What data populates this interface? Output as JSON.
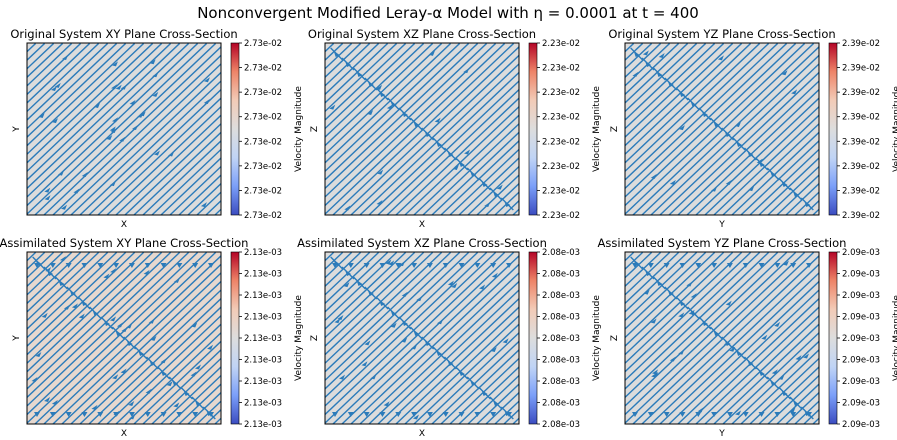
{
  "figure": {
    "suptitle": "Nonconvergent Modified Leray-α Model with η = 0.0001 at t = 400"
  },
  "chart_data": [
    {
      "type": "streamplot",
      "title": "Original System XY Plane Cross-Section",
      "xlabel": "X",
      "ylabel": "Y",
      "colorbar_label": "Velocity Magnitude",
      "colorbar_ticks": [
        "2.73e-02",
        "2.73e-02",
        "2.73e-02",
        "2.73e-02",
        "2.73e-02",
        "2.73e-02",
        "2.73e-02",
        "2.73e-02"
      ],
      "background": "#dcdcdc",
      "line_color": "#2b7bba",
      "diag_pattern": "none",
      "arrow_density": "high"
    },
    {
      "type": "streamplot",
      "title": "Original System XZ Plane Cross-Section",
      "xlabel": "X",
      "ylabel": "Z",
      "colorbar_label": "Velocity Magnitude",
      "colorbar_ticks": [
        "2.23e-02",
        "2.23e-02",
        "2.23e-02",
        "2.23e-02",
        "2.23e-02",
        "2.23e-02",
        "2.23e-02",
        "2.23e-02"
      ],
      "background": "#dcdcdc",
      "line_color": "#2b7bba",
      "diag_pattern": "diagonal",
      "arrow_density": "low"
    },
    {
      "type": "streamplot",
      "title": "Original System YZ Plane Cross-Section",
      "xlabel": "Y",
      "ylabel": "Z",
      "colorbar_label": "Velocity Magnitude",
      "colorbar_ticks": [
        "2.39e-02",
        "2.39e-02",
        "2.39e-02",
        "2.39e-02",
        "2.39e-02",
        "2.39e-02",
        "2.39e-02",
        "2.39e-02"
      ],
      "background": "#dcdcdc",
      "line_color": "#2b7bba",
      "diag_pattern": "diagonal",
      "arrow_density": "low"
    },
    {
      "type": "streamplot",
      "title": "Assimilated System XY Plane Cross-Section",
      "xlabel": "X",
      "ylabel": "Y",
      "colorbar_label": "Velocity Magnitude",
      "colorbar_ticks": [
        "2.13e-03",
        "2.13e-03",
        "2.13e-03",
        "2.13e-03",
        "2.13e-03",
        "2.13e-03",
        "2.13e-03",
        "2.13e-03",
        "2.13e-03"
      ],
      "background": "#e6d8cf",
      "line_color": "#2b7bba",
      "diag_pattern": "diagonal",
      "arrow_density": "high"
    },
    {
      "type": "streamplot",
      "title": "Assimilated System XZ Plane Cross-Section",
      "xlabel": "X",
      "ylabel": "Z",
      "colorbar_label": "Velocity Magnitude",
      "colorbar_ticks": [
        "2.08e-03",
        "2.08e-03",
        "2.08e-03",
        "2.08e-03",
        "2.08e-03",
        "2.08e-03",
        "2.08e-03",
        "2.08e-03",
        "2.08e-03"
      ],
      "background": "#dcdcdc",
      "line_color": "#2b7bba",
      "diag_pattern": "diagonal",
      "arrow_density": "medium"
    },
    {
      "type": "streamplot",
      "title": "Assimilated System YZ Plane Cross-Section",
      "xlabel": "Y",
      "ylabel": "Z",
      "colorbar_label": "Velocity Magnitude",
      "colorbar_ticks": [
        "2.09e-03",
        "2.09e-03",
        "2.09e-03",
        "2.09e-03",
        "2.09e-03",
        "2.09e-03",
        "2.09e-03",
        "2.09e-03",
        "2.09e-03"
      ],
      "background": "#dcdcdc",
      "line_color": "#2b7bba",
      "diag_pattern": "diagonal",
      "arrow_density": "medium"
    }
  ],
  "colormap": {
    "name": "coolwarm",
    "stops": [
      "#3b4cc0",
      "#7b9ff9",
      "#c0d4f5",
      "#dddddd",
      "#f2cbb7",
      "#ee8468",
      "#b40426"
    ]
  }
}
